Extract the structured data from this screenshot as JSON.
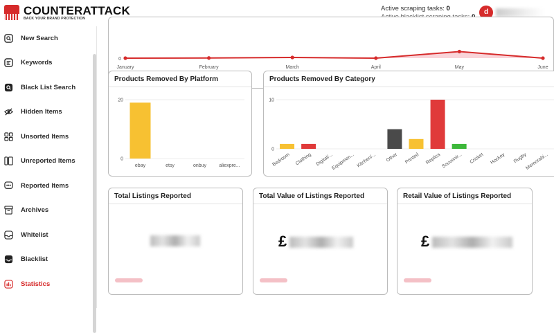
{
  "header": {
    "brand_name": "COUNTERATTACK",
    "brand_tagline": "BACK YOUR BRAND PROTECTION",
    "active_tasks_label": "Active scraping tasks:",
    "active_tasks_value": "0",
    "blacklist_tasks_label": "Active blacklist scraping tasks:",
    "blacklist_tasks_value": "0",
    "avatar_initial": "d"
  },
  "sidebar": {
    "items": [
      {
        "label": "New Search",
        "icon": "search-square-icon"
      },
      {
        "label": "Keywords",
        "icon": "keywords-icon"
      },
      {
        "label": "Black List Search",
        "icon": "blacklist-search-icon"
      },
      {
        "label": "Hidden Items",
        "icon": "eye-slash-icon"
      },
      {
        "label": "Unsorted Items",
        "icon": "grid-icon"
      },
      {
        "label": "Unreported Items",
        "icon": "columns-icon"
      },
      {
        "label": "Reported Items",
        "icon": "chat-dots-icon"
      },
      {
        "label": "Archives",
        "icon": "archive-icon"
      },
      {
        "label": "Whitelist",
        "icon": "inbox-icon"
      },
      {
        "label": "Blacklist",
        "icon": "inbox-filled-icon"
      },
      {
        "label": "Statistics",
        "icon": "bar-chart-icon"
      }
    ],
    "active_index": 10
  },
  "colors": {
    "brand_red": "#d62b2b",
    "yellow": "#f7c132",
    "red": "#e03a3a",
    "dark": "#4a4a4a",
    "green": "#3db83a"
  },
  "chart_data": [
    {
      "type": "area",
      "title": "",
      "categories": [
        "January",
        "February",
        "March",
        "April",
        "May",
        "June"
      ],
      "values": [
        0,
        0.05,
        0.2,
        0,
        1.9,
        0
      ],
      "y_tick_label": "0",
      "ylim": [
        0,
        20
      ]
    },
    {
      "type": "bar",
      "title": "Products Removed By Platform",
      "categories": [
        "ebay",
        "etsy",
        "onbuy",
        "aliexpre..."
      ],
      "values": [
        19,
        0,
        0,
        0
      ],
      "colors": [
        "#f7c132",
        "#f7c132",
        "#f7c132",
        "#f7c132"
      ],
      "y_ticks": [
        0,
        20
      ],
      "ylim": [
        0,
        20
      ]
    },
    {
      "type": "bar",
      "title": "Products Removed By Category",
      "categories": [
        "Bedroom",
        "Clothing",
        "Digital/...",
        "Equipmen...",
        "Kitchen/...",
        "Other",
        "Printed",
        "Replica",
        "Souvenir...",
        "Cricket",
        "Hockey",
        "Rugby",
        "Memorabi..."
      ],
      "values": [
        1,
        1,
        0,
        0,
        0,
        4,
        2,
        10,
        1,
        0,
        0,
        0,
        0
      ],
      "colors": [
        "#f7c132",
        "#e03a3a",
        "#f7c132",
        "#f7c132",
        "#f7c132",
        "#4a4a4a",
        "#f7c132",
        "#e03a3a",
        "#3db83a",
        "#f7c132",
        "#f7c132",
        "#f7c132",
        "#f7c132"
      ],
      "y_ticks": [
        0,
        10
      ],
      "ylim": [
        0,
        10
      ]
    }
  ],
  "stats": {
    "total_listings_title": "Total Listings Reported",
    "total_value_title": "Total Value of Listings Reported",
    "retail_value_title": "Retail Value of Listings Reported",
    "currency_symbol": "£"
  }
}
